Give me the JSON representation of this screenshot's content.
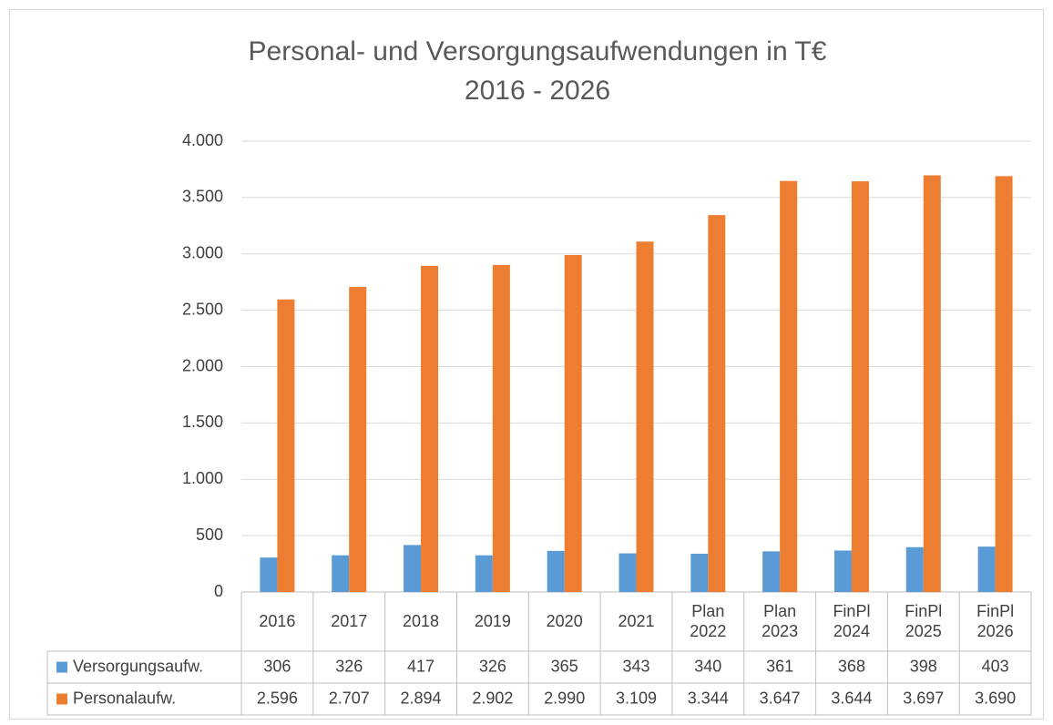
{
  "chart_data": {
    "type": "bar",
    "title": "Personal- und Versorgungsaufwendungen in T€",
    "subtitle": "2016 - 2026",
    "categories": [
      "2016",
      "2017",
      "2018",
      "2019",
      "2020",
      "2021",
      "Plan 2022",
      "Plan 2023",
      "FinPl 2024",
      "FinPl 2025",
      "FinPl 2026"
    ],
    "series": [
      {
        "name": "Versorgungsaufw.",
        "color": "#5b9bd5",
        "values": [
          306,
          326,
          417,
          326,
          365,
          343,
          340,
          361,
          368,
          398,
          403
        ]
      },
      {
        "name": "Personalaufw.",
        "color": "#ed7d31",
        "values": [
          2596,
          2707,
          2894,
          2902,
          2990,
          3109,
          3344,
          3647,
          3644,
          3697,
          3690
        ],
        "value_labels": [
          "2.596",
          "2.707",
          "2.894",
          "2.902",
          "2.990",
          "3.109",
          "3.344",
          "3.647",
          "3.644",
          "3.697",
          "3.690"
        ]
      }
    ],
    "ylim": [
      0,
      4000
    ],
    "yticks": [
      0,
      500,
      {
        "value": 1000,
        "label": "1.000"
      },
      {
        "value": 1500,
        "label": "1.500"
      },
      {
        "value": 2000,
        "label": "2.000"
      },
      {
        "value": 2500,
        "label": "2.500"
      },
      {
        "value": 3000,
        "label": "3.000"
      },
      {
        "value": 3500,
        "label": "3.500"
      },
      {
        "value": 4000,
        "label": "4.000"
      }
    ],
    "grid": true
  }
}
